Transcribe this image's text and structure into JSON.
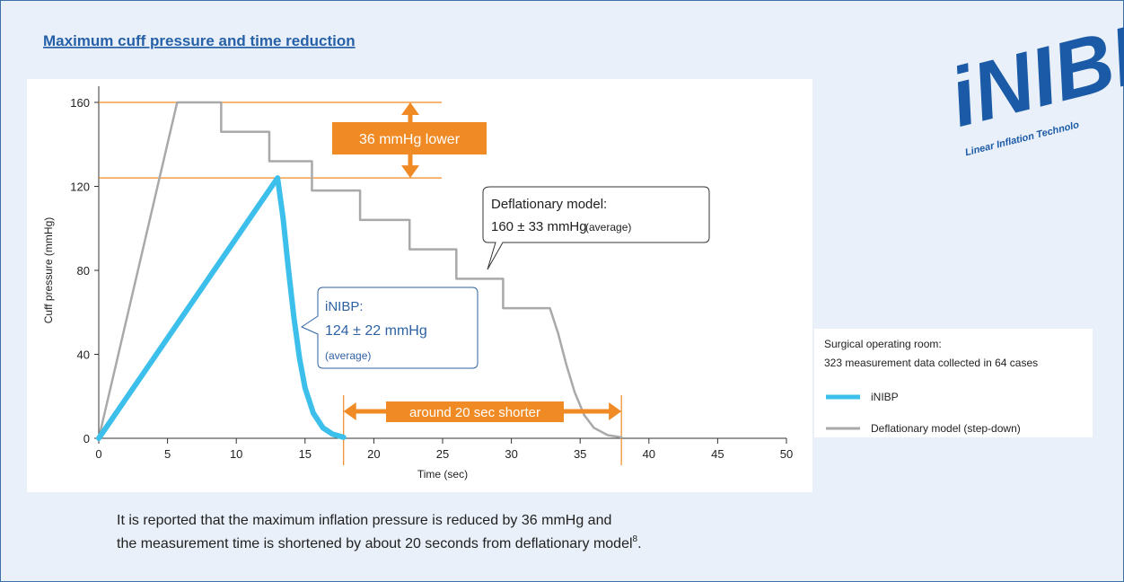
{
  "title": "Maximum cuff pressure and time reduction",
  "logo": {
    "mark": "iNIBP",
    "tagline": "Linear Inflation Technolo"
  },
  "chart_data": {
    "type": "line",
    "x_label": "Time (sec)",
    "y_label": "Cuff pressure (mmHg)",
    "xlim": [
      0,
      50
    ],
    "xticks": [
      0,
      5,
      10,
      15,
      20,
      25,
      30,
      35,
      40,
      45,
      50
    ],
    "ylim": [
      0,
      160
    ],
    "yticks": [
      0,
      40,
      80,
      120,
      160
    ],
    "series": [
      {
        "name": "iNIBP",
        "color": "#3cbfea",
        "x": [
          0,
          13,
          13.4,
          13.8,
          14.2,
          14.6,
          15,
          15.6,
          16.3,
          17,
          17.8
        ],
        "values": [
          0,
          124,
          105,
          80,
          57,
          38,
          24,
          12,
          5,
          2,
          0.5
        ]
      },
      {
        "name": "Deflationary model (step-down)",
        "color": "#a9a9a9",
        "x": [
          0,
          5.7,
          8.9,
          8.9,
          12.4,
          12.4,
          15.5,
          15.5,
          19,
          19,
          22.6,
          22.6,
          26,
          26,
          29.4,
          29.4,
          32.8,
          33.4,
          34,
          34.6,
          35.3,
          36,
          37,
          38
        ],
        "values": [
          0,
          160,
          160,
          146,
          146,
          132,
          132,
          118,
          118,
          104,
          104,
          90,
          90,
          76,
          76,
          62,
          62,
          50,
          35,
          22,
          11,
          5,
          1.5,
          0.5
        ]
      }
    ],
    "annotations": {
      "pressure_difference": "36 mmHg lower",
      "time_difference": "around 20 sec shorter",
      "deflationary_callout": [
        "Deflationary model:",
        "160 ± 33 mmHg",
        "(average)"
      ],
      "inibp_callout": [
        "iNIBP:",
        "124 ± 22 mmHg",
        "(average)"
      ]
    },
    "legend_title": [
      "Surgical operating room:",
      "323 measurement data collected in 64 cases"
    ]
  },
  "caption": {
    "line1": "It is reported that the maximum inflation pressure is reduced by 36 mmHg and",
    "line2": "the measurement time is shortened by about 20 seconds from deflationary model",
    "superscript": "8",
    "end": "."
  }
}
